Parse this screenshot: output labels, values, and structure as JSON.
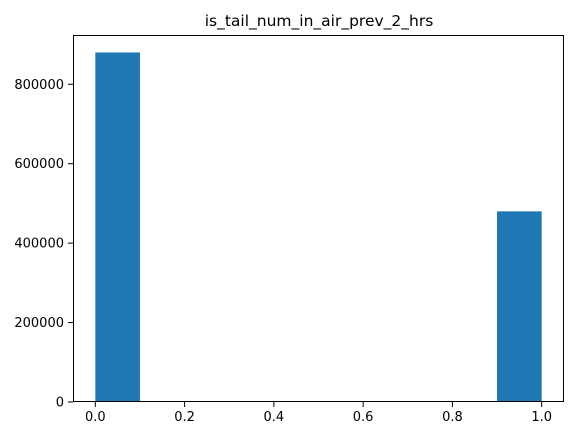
{
  "chart_data": {
    "type": "bar",
    "title": "is_tail_num_in_air_prev_2_hrs",
    "xlabel": "",
    "ylabel": "",
    "xlim": [
      -0.05,
      1.05
    ],
    "ylim": [
      0,
      924000
    ],
    "bins": [
      {
        "x0": 0.0,
        "x1": 0.1,
        "value": 880000
      },
      {
        "x0": 0.1,
        "x1": 0.2,
        "value": 0
      },
      {
        "x0": 0.2,
        "x1": 0.3,
        "value": 0
      },
      {
        "x0": 0.3,
        "x1": 0.4,
        "value": 0
      },
      {
        "x0": 0.4,
        "x1": 0.5,
        "value": 0
      },
      {
        "x0": 0.5,
        "x1": 0.6,
        "value": 0
      },
      {
        "x0": 0.6,
        "x1": 0.7,
        "value": 0
      },
      {
        "x0": 0.7,
        "x1": 0.8,
        "value": 0
      },
      {
        "x0": 0.8,
        "x1": 0.9,
        "value": 0
      },
      {
        "x0": 0.9,
        "x1": 1.0,
        "value": 480000
      }
    ],
    "x_ticks": [
      {
        "value": 0.0,
        "label": "0.0"
      },
      {
        "value": 0.2,
        "label": "0.2"
      },
      {
        "value": 0.4,
        "label": "0.4"
      },
      {
        "value": 0.6,
        "label": "0.6"
      },
      {
        "value": 0.8,
        "label": "0.8"
      },
      {
        "value": 1.0,
        "label": "1.0"
      }
    ],
    "y_ticks": [
      {
        "value": 0,
        "label": "0"
      },
      {
        "value": 200000,
        "label": "200000"
      },
      {
        "value": 400000,
        "label": "400000"
      },
      {
        "value": 600000,
        "label": "600000"
      },
      {
        "value": 800000,
        "label": "800000"
      }
    ],
    "grid": false,
    "bar_color": "#1f77b4"
  }
}
